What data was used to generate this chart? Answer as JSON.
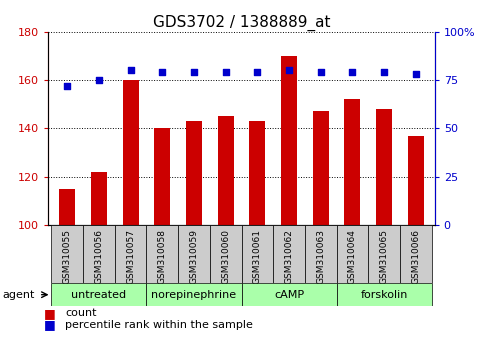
{
  "title": "GDS3702 / 1388889_at",
  "samples": [
    "GSM310055",
    "GSM310056",
    "GSM310057",
    "GSM310058",
    "GSM310059",
    "GSM310060",
    "GSM310061",
    "GSM310062",
    "GSM310063",
    "GSM310064",
    "GSM310065",
    "GSM310066"
  ],
  "counts": [
    115,
    122,
    160,
    140,
    143,
    145,
    143,
    170,
    147,
    152,
    148,
    137
  ],
  "percentiles": [
    72,
    75,
    80,
    79,
    79,
    79,
    79,
    80,
    79,
    79,
    79,
    78
  ],
  "ylim_left": [
    100,
    180
  ],
  "ylim_right": [
    0,
    100
  ],
  "yticks_left": [
    100,
    120,
    140,
    160,
    180
  ],
  "yticks_right": [
    0,
    25,
    50,
    75,
    100
  ],
  "yticklabels_right": [
    "0",
    "25",
    "50",
    "75",
    "100%"
  ],
  "bar_color": "#cc0000",
  "dot_color": "#0000cc",
  "grid_color": "#000000",
  "agent_groups": [
    {
      "label": "untreated",
      "start": 0,
      "end": 3
    },
    {
      "label": "norepinephrine",
      "start": 3,
      "end": 6
    },
    {
      "label": "cAMP",
      "start": 6,
      "end": 9
    },
    {
      "label": "forskolin",
      "start": 9,
      "end": 12
    }
  ],
  "agent_color_light": "#aaffaa",
  "sample_box_color": "#cccccc",
  "baseline": 100,
  "bar_width": 0.5,
  "title_fontsize": 11,
  "tick_fontsize": 8,
  "label_fontsize": 8,
  "sample_fontsize": 6.5,
  "legend_fontsize": 8
}
